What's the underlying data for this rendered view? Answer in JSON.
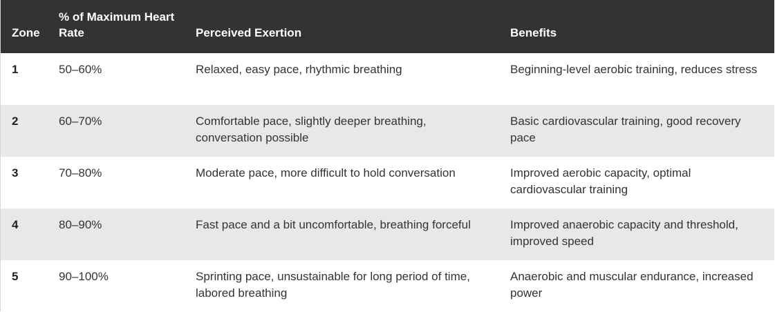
{
  "table": {
    "headers": [
      "Zone",
      "% of Maximum Heart Rate",
      "Perceived Exertion",
      "Benefits"
    ],
    "rows": [
      {
        "zone": "1",
        "hr": "50–60%",
        "exertion": "Relaxed, easy pace, rhythmic breathing",
        "benefits": "Beginning-level aerobic training, reduces stress"
      },
      {
        "zone": "2",
        "hr": "60–70%",
        "exertion": "Comfortable pace, slightly deeper breathing, conversation possible",
        "benefits": "Basic cardiovascular training, good recovery pace"
      },
      {
        "zone": "3",
        "hr": "70–80%",
        "exertion": "Moderate pace, more difficult to hold conversation",
        "benefits": "Improved aerobic capacity, optimal cardiovascular training"
      },
      {
        "zone": "4",
        "hr": "80–90%",
        "exertion": "Fast pace and a bit uncomfortable, breathing forceful",
        "benefits": "Improved anaerobic capacity and threshold, improved speed"
      },
      {
        "zone": "5",
        "hr": "90–100%",
        "exertion": "Sprinting pace, unsustainable for long period of time, labored breathing",
        "benefits": "Anaerobic and muscular endurance, increased power"
      }
    ]
  },
  "colors": {
    "header_bg": "#333333",
    "header_text": "#ffffff",
    "row_stripe": "#e8e8e8",
    "row_plain": "#ffffff",
    "body_text": "#333333"
  }
}
